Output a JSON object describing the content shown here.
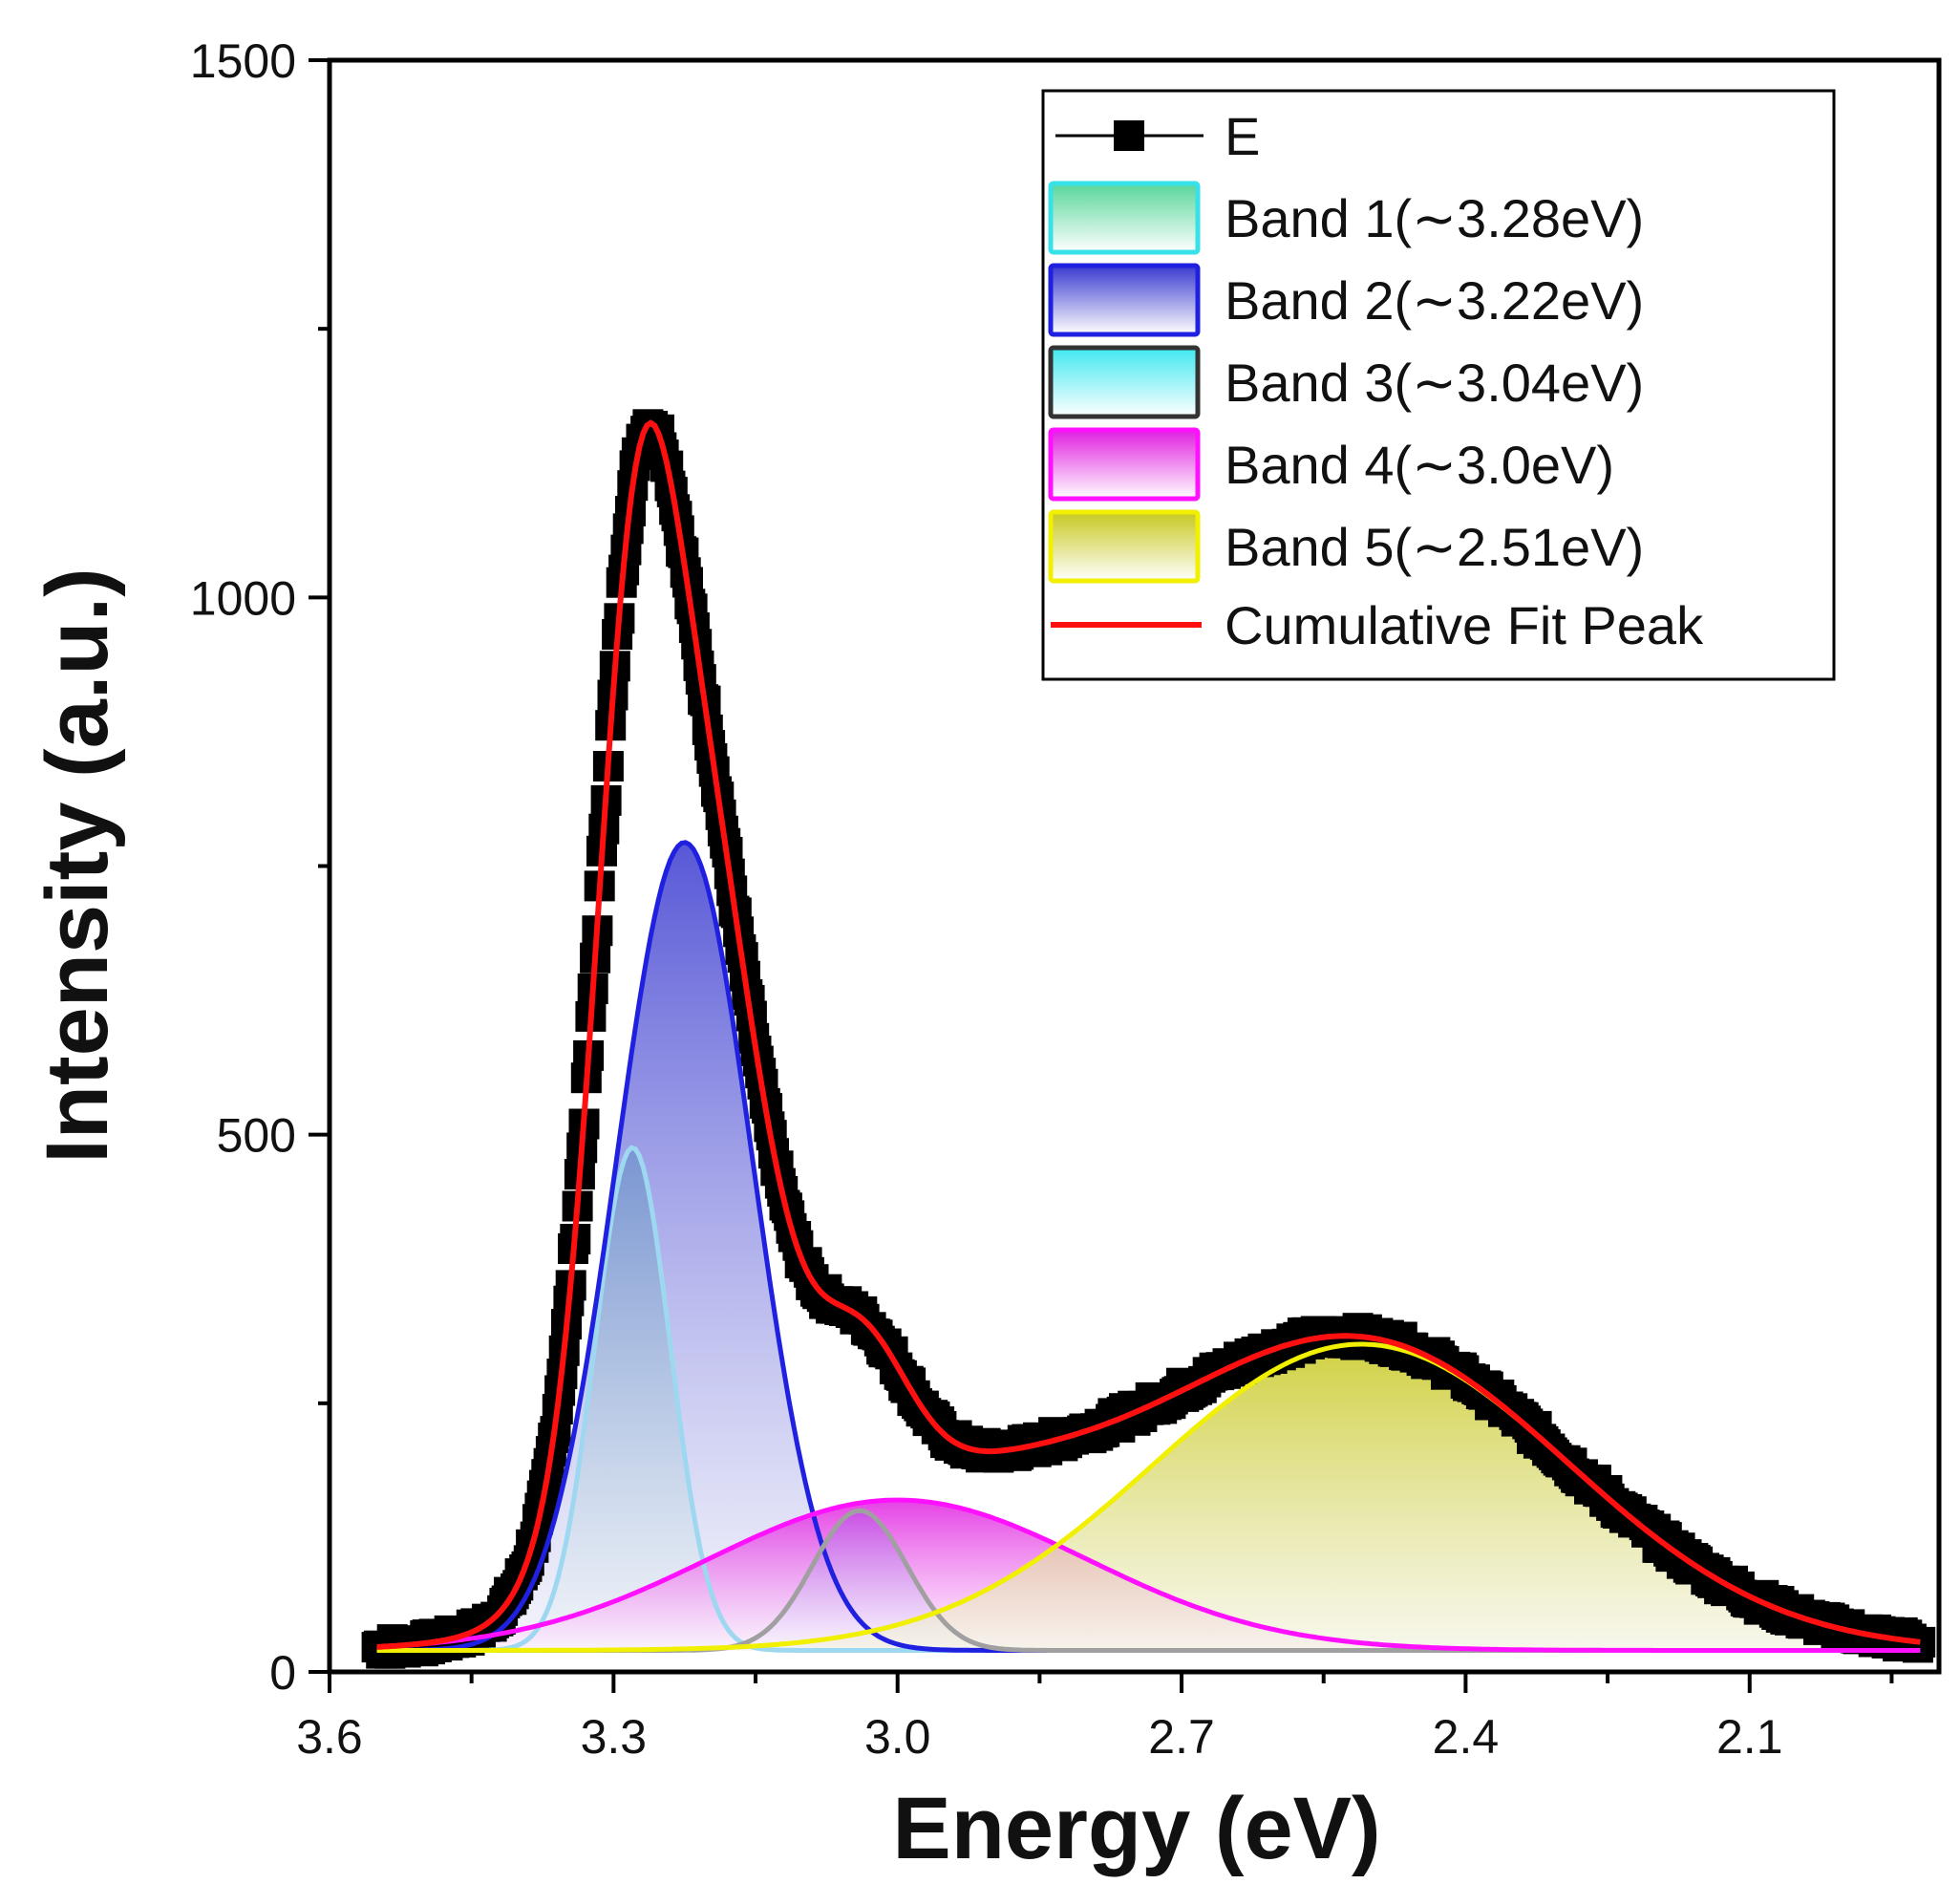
{
  "chart_data": {
    "type": "area",
    "xlabel": "Energy (eV)",
    "ylabel": "Intensity (a.u.)",
    "xlim": [
      3.6,
      1.9
    ],
    "ylim": [
      0,
      1500
    ],
    "x_reversed": true,
    "x_ticks": [
      3.6,
      3.3,
      3.0,
      2.7,
      2.4,
      2.1
    ],
    "x_tick_labels": [
      "3.6",
      "3.3",
      "3.0",
      "2.7",
      "2.4",
      "2.1"
    ],
    "y_ticks": [
      0,
      500,
      1000,
      1500
    ],
    "y_tick_labels": [
      "0",
      "500",
      "1000",
      "1500"
    ],
    "grid": false,
    "legend_position": "top-right",
    "x_range": [
      3.55,
      1.92
    ],
    "components": [
      {
        "name": "Band 1(∼3.28eV)",
        "center": 3.28,
        "amplitude": 468,
        "sigma": 0.04,
        "stroke": "#9ed8f0",
        "fill_top": "#58d69a",
        "fill_bottom": "#f4fbf6",
        "legend_stroke": "#38e0e8"
      },
      {
        "name": "Band 2(∼3.22eV)",
        "center": 3.225,
        "amplitude": 752,
        "sigma": 0.072,
        "stroke": "#2020e0",
        "fill_top": "#3a3ad0",
        "fill_bottom": "#eceef8",
        "legend_stroke": "#2020e0"
      },
      {
        "name": "Band 3(∼3.04eV)",
        "center": 3.04,
        "amplitude": 130,
        "sigma": 0.05,
        "stroke": "#a0a0a0",
        "fill_top": "#40e8f0",
        "fill_bottom": "#f2fbfc",
        "legend_stroke": "#333333"
      },
      {
        "name": "Band 4(∼3.0eV)",
        "center": 3.0,
        "amplitude": 140,
        "sigma": 0.2,
        "stroke": "#ff10ff",
        "fill_top": "#e020e0",
        "fill_bottom": "#fff2ff",
        "legend_stroke": "#ff10ff"
      },
      {
        "name": "Band 5(∼2.51eV)",
        "center": 2.51,
        "amplitude": 285,
        "sigma": 0.22,
        "stroke": "#f0f000",
        "fill_top": "#c8c820",
        "fill_bottom": "#f2f2e0",
        "legend_stroke": "#f0f000"
      }
    ],
    "cumulative_fit": {
      "name": "Cumulative Fit Peak",
      "color": "#ff1010"
    },
    "measured": {
      "name": "E",
      "color": "#000000",
      "noise": 8
    },
    "baseline": 20
  }
}
